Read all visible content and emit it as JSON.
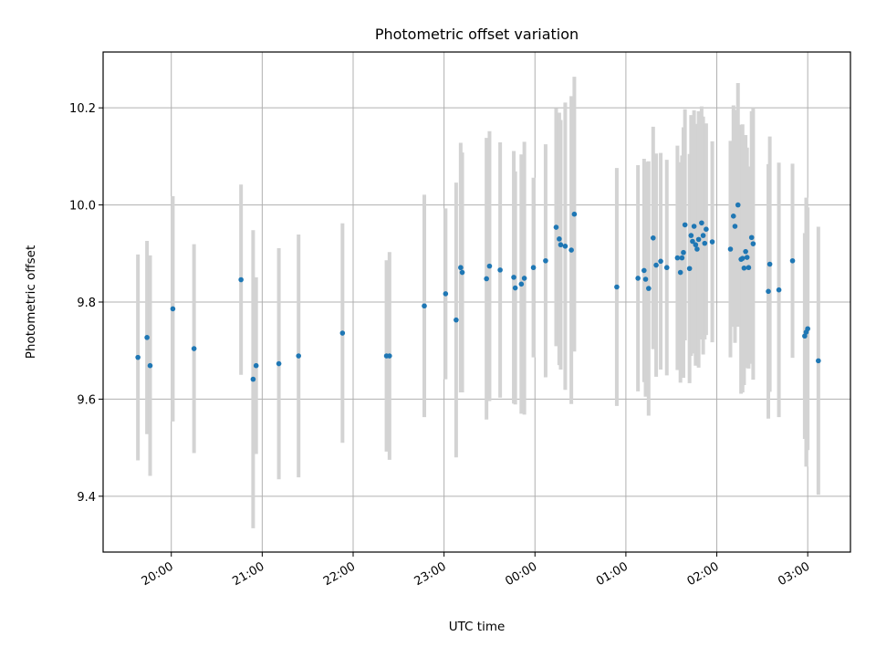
{
  "chart_data": {
    "type": "scatter",
    "title": "Photometric offset variation",
    "xlabel": "UTC time",
    "ylabel": "Photometric offset",
    "x_ticks": [
      "20:00",
      "21:00",
      "22:00",
      "23:00",
      "00:00",
      "01:00",
      "02:00",
      "03:00"
    ],
    "y_ticks": [
      "9.4",
      "9.6",
      "9.8",
      "10.0",
      "10.2"
    ],
    "xlim_hours": [
      19.25,
      27.47
    ],
    "ylim": [
      9.285,
      10.315
    ],
    "grid": true,
    "colors": {
      "points": "#1f77b4",
      "error_bars": "#d3d3d3",
      "grid": "#b0b0b0"
    },
    "series": [
      {
        "x": [
          19.633,
          19.733,
          19.767,
          20.017,
          20.25,
          20.767,
          20.9,
          20.933,
          21.183,
          21.4,
          21.883,
          22.367,
          22.4,
          22.783,
          23.017,
          23.133,
          23.183,
          23.2,
          23.467,
          23.5,
          23.617,
          23.767,
          23.783,
          23.85,
          23.883,
          23.983,
          24.117,
          24.233,
          24.267,
          24.283,
          24.333,
          24.4,
          24.433,
          24.9,
          25.133,
          25.2,
          25.217,
          25.25,
          25.3,
          25.333,
          25.383,
          25.45,
          25.567,
          25.6,
          25.617,
          25.633,
          25.65,
          25.7,
          25.717,
          25.733,
          25.75,
          25.767,
          25.783,
          25.8,
          25.833,
          25.85,
          25.867,
          25.883,
          25.95,
          26.15,
          26.183,
          26.2,
          26.233,
          26.267,
          26.283,
          26.3,
          26.317,
          26.333,
          26.35,
          26.383,
          26.4,
          26.567,
          26.583,
          26.683,
          26.833,
          26.967,
          26.983,
          27.0,
          27.117
        ],
        "y": [
          9.686,
          9.727,
          9.669,
          9.786,
          9.704,
          9.846,
          9.641,
          9.669,
          9.673,
          9.689,
          9.736,
          9.689,
          9.689,
          9.792,
          9.817,
          9.763,
          9.871,
          9.861,
          9.848,
          9.874,
          9.866,
          9.851,
          9.829,
          9.837,
          9.849,
          9.871,
          9.885,
          9.954,
          9.93,
          9.918,
          9.915,
          9.907,
          9.981,
          9.831,
          9.849,
          9.865,
          9.847,
          9.828,
          9.932,
          9.876,
          9.884,
          9.871,
          9.891,
          9.861,
          9.891,
          9.902,
          9.959,
          9.869,
          9.937,
          9.925,
          9.956,
          9.918,
          9.909,
          9.929,
          9.963,
          9.937,
          9.921,
          9.95,
          9.924,
          9.909,
          9.977,
          9.956,
          10.0,
          9.888,
          9.89,
          9.87,
          9.904,
          9.892,
          9.871,
          9.933,
          9.92,
          9.822,
          9.878,
          9.825,
          9.885,
          9.73,
          9.738,
          9.745,
          9.679
        ],
        "err": [
          0.212,
          0.199,
          0.227,
          0.232,
          0.215,
          0.196,
          0.307,
          0.182,
          0.238,
          0.25,
          0.226,
          0.197,
          0.214,
          0.229,
          0.176,
          0.283,
          0.257,
          0.247,
          0.29,
          0.278,
          0.263,
          0.26,
          0.24,
          0.267,
          0.281,
          0.185,
          0.24,
          0.245,
          0.26,
          0.257,
          0.296,
          0.317,
          0.283,
          0.245,
          0.233,
          0.23,
          0.242,
          0.262,
          0.229,
          0.23,
          0.223,
          0.222,
          0.231,
          0.227,
          0.211,
          0.258,
          0.238,
          0.236,
          0.248,
          0.231,
          0.239,
          0.249,
          0.234,
          0.264,
          0.24,
          0.245,
          0.198,
          0.218,
          0.207,
          0.223,
          0.228,
          0.24,
          0.251,
          0.277,
          0.276,
          0.241,
          0.24,
          0.226,
          0.208,
          0.26,
          0.28,
          0.262,
          0.263,
          0.262,
          0.2,
          0.212,
          0.277,
          0.25,
          0.276
        ]
      }
    ]
  }
}
